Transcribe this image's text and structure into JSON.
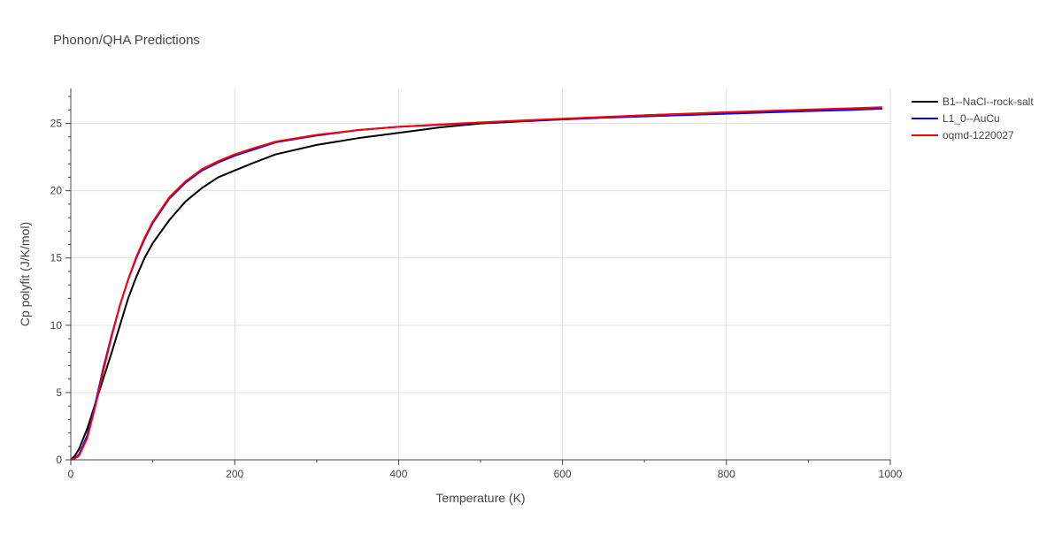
{
  "chart_data": {
    "type": "line",
    "title": "Phonon/QHA Predictions",
    "xlabel": "Temperature (K)",
    "ylabel": "Cp polyfit (J/K/mol)",
    "xlim": [
      0,
      1000
    ],
    "ylim": [
      0,
      27.6
    ],
    "xticks": [
      0,
      200,
      400,
      600,
      800,
      1000
    ],
    "yticks": [
      0,
      5,
      10,
      15,
      20,
      25
    ],
    "grid": true,
    "legend_position": "top-right",
    "series": [
      {
        "name": "B1--NaCl--rock-salt",
        "color": "#000000",
        "x": [
          0,
          5,
          10,
          20,
          30,
          40,
          50,
          60,
          70,
          80,
          90,
          100,
          120,
          140,
          160,
          180,
          200,
          220,
          250,
          300,
          350,
          400,
          450,
          500,
          550,
          600,
          650,
          700,
          750,
          800,
          850,
          900,
          950,
          990
        ],
        "y": [
          0,
          0.3,
          0.8,
          2.3,
          4.2,
          6.1,
          8.0,
          10.0,
          12.0,
          13.6,
          15.0,
          16.1,
          17.8,
          19.2,
          20.2,
          21.0,
          21.5,
          22.0,
          22.7,
          23.4,
          23.9,
          24.3,
          24.7,
          25.0,
          25.15,
          25.3,
          25.45,
          25.6,
          25.7,
          25.8,
          25.9,
          26.0,
          26.05,
          26.1
        ]
      },
      {
        "name": "L1_0--AuCu",
        "color": "#0000ff",
        "x": [
          0,
          5,
          10,
          20,
          30,
          40,
          50,
          60,
          70,
          80,
          90,
          100,
          120,
          140,
          160,
          180,
          200,
          220,
          250,
          300,
          350,
          400,
          450,
          500,
          550,
          600,
          650,
          700,
          750,
          800,
          850,
          900,
          950,
          990
        ],
        "y": [
          0,
          0.1,
          0.4,
          1.8,
          4.2,
          6.9,
          9.3,
          11.5,
          13.4,
          15.0,
          16.4,
          17.6,
          19.4,
          20.6,
          21.5,
          22.1,
          22.6,
          23.0,
          23.6,
          24.1,
          24.5,
          24.75,
          24.9,
          25.05,
          25.2,
          25.3,
          25.42,
          25.52,
          25.62,
          25.72,
          25.82,
          25.92,
          26.0,
          26.1
        ]
      },
      {
        "name": "oqmd-1220027",
        "color": "#ff0000",
        "x": [
          0,
          5,
          10,
          20,
          30,
          40,
          50,
          60,
          70,
          80,
          90,
          100,
          120,
          140,
          160,
          180,
          200,
          220,
          250,
          300,
          350,
          400,
          450,
          500,
          550,
          600,
          650,
          700,
          750,
          800,
          850,
          900,
          950,
          990
        ],
        "y": [
          0,
          0.1,
          0.3,
          1.6,
          4.0,
          6.7,
          9.2,
          11.5,
          13.4,
          15.1,
          16.5,
          17.7,
          19.5,
          20.7,
          21.6,
          22.2,
          22.7,
          23.1,
          23.65,
          24.15,
          24.5,
          24.75,
          24.92,
          25.08,
          25.22,
          25.35,
          25.48,
          25.6,
          25.72,
          25.83,
          25.93,
          26.03,
          26.12,
          26.2
        ]
      }
    ]
  }
}
